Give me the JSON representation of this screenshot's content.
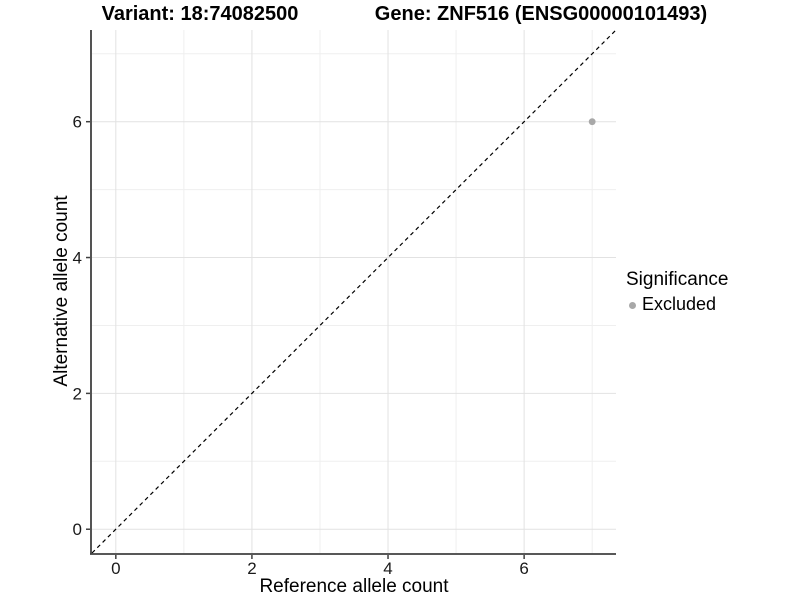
{
  "chart_data": {
    "type": "scatter",
    "title_left": "Variant: 18:74082500",
    "title_right": "Gene: ZNF516 (ENSG00000101493)",
    "xlabel": "Reference allele count",
    "ylabel": "Alternative allele count",
    "xlim": [
      -0.35,
      7.35
    ],
    "ylim": [
      -0.35,
      7.35
    ],
    "x_ticks": [
      0,
      2,
      4,
      6
    ],
    "y_ticks": [
      0,
      2,
      4,
      6
    ],
    "x_minor_gridlines": [
      1,
      3,
      5,
      7
    ],
    "y_minor_gridlines": [
      1,
      3,
      5,
      7
    ],
    "grid": "on",
    "points": [
      {
        "x": 7,
        "y": 6,
        "significance": "Excluded"
      }
    ],
    "identity_line": {
      "slope": 1,
      "intercept": 0,
      "style": "dashed"
    },
    "legend": {
      "title": "Significance",
      "position": "right",
      "items": [
        {
          "label": "Excluded",
          "color": "#a8a8a8"
        }
      ]
    },
    "colors": {
      "point": "#a8a8a8",
      "grid_major": "#e2e2e2",
      "grid_minor": "#efefef",
      "axis_line": "#404040",
      "tick_mark": "#404040",
      "identity_line": "#000000",
      "background": "#ffffff"
    }
  }
}
